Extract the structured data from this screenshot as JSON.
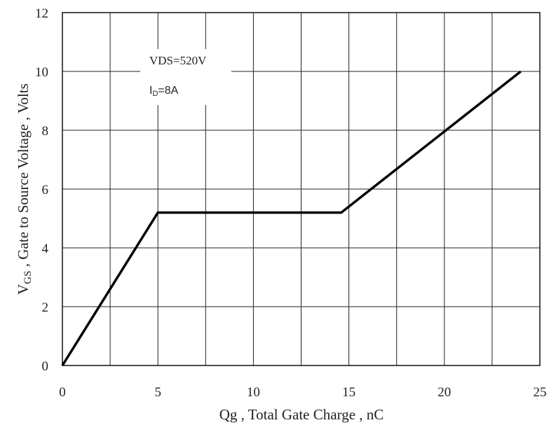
{
  "chart_data": {
    "type": "line",
    "xlabel": "Qg , Total Gate Charge , nC",
    "ylabel_prefix": "V",
    "ylabel_sub": "GS",
    "ylabel_rest": " , Gate to Source Voltage , Volts",
    "xlim": [
      0,
      25
    ],
    "ylim": [
      0,
      12
    ],
    "x_ticks": [
      "0",
      "5",
      "10",
      "15",
      "20",
      "25"
    ],
    "y_ticks": [
      "0",
      "2",
      "4",
      "6",
      "8",
      "10",
      "12"
    ],
    "x_grid": [
      0,
      2.5,
      5,
      7.5,
      10,
      12.5,
      15,
      17.5,
      20,
      22.5,
      25
    ],
    "y_grid": [
      0,
      2,
      4,
      6,
      8,
      10,
      12
    ],
    "grid": true,
    "series": [
      {
        "x": [
          0,
          5,
          14.6,
          24
        ],
        "y": [
          0,
          5.2,
          5.2,
          10
        ]
      }
    ],
    "annotations": {
      "vds": "VDS=520V",
      "id_prefix": "I",
      "id_sub": "D",
      "id_rest": "=8A"
    }
  }
}
